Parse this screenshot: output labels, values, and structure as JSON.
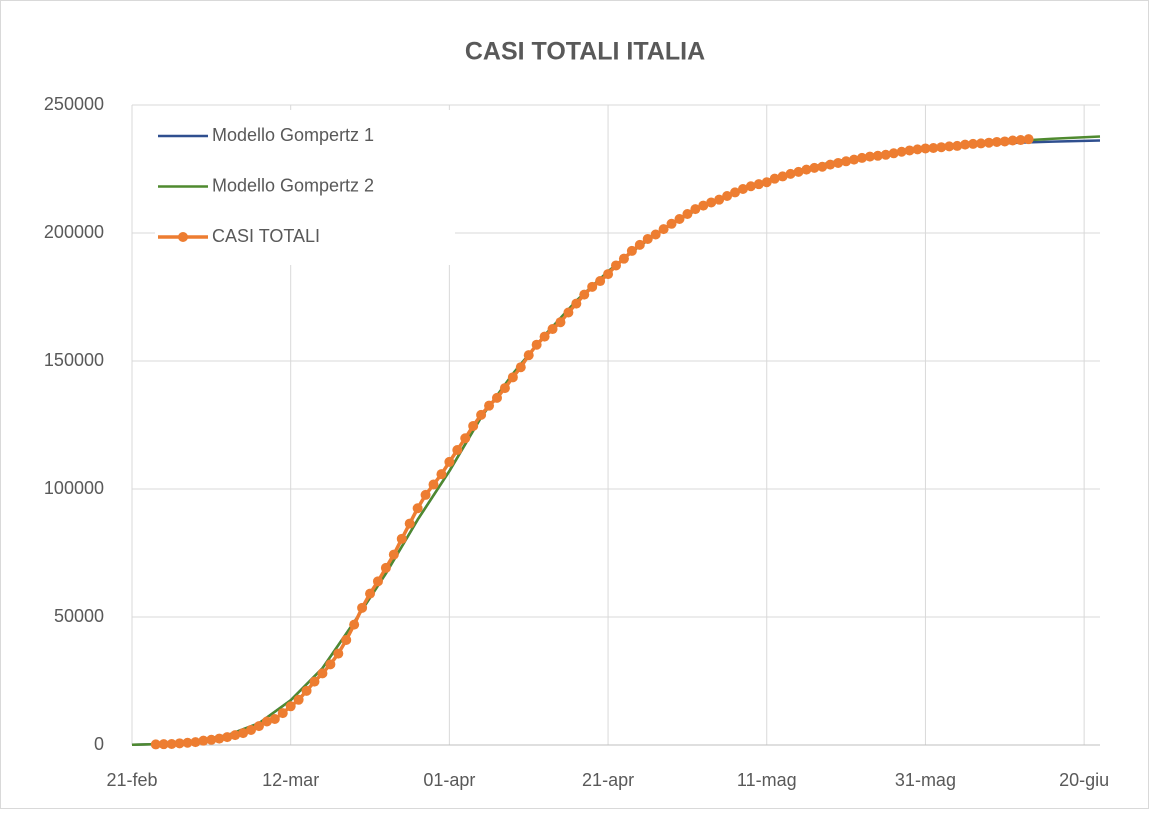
{
  "chart_data": {
    "type": "line",
    "title": "CASI TOTALI ITALIA",
    "xlim": [
      0,
      122
    ],
    "ylim": [
      0,
      250000
    ],
    "xticks": [
      {
        "value": 0,
        "label": "21-feb"
      },
      {
        "value": 20,
        "label": "12-mar"
      },
      {
        "value": 40,
        "label": "01-apr"
      },
      {
        "value": 60,
        "label": "21-apr"
      },
      {
        "value": 80,
        "label": "11-mag"
      },
      {
        "value": 100,
        "label": "31-mag"
      },
      {
        "value": 120,
        "label": "20-giu"
      }
    ],
    "yticks": [
      0,
      50000,
      100000,
      150000,
      200000,
      250000
    ],
    "grid": true,
    "legend": "upper left",
    "series": [
      {
        "name": "Modello Gompertz 1",
        "color": "#2f4f8f",
        "marker": false,
        "x": [
          0,
          4,
          8,
          12,
          16,
          20,
          24,
          28,
          32,
          36,
          40,
          44,
          48,
          52,
          56,
          60,
          64,
          68,
          72,
          76,
          80,
          84,
          88,
          92,
          96,
          100,
          104,
          108,
          112,
          116,
          120,
          122
        ],
        "values": [
          100,
          400,
          1500,
          3800,
          8500,
          17500,
          30000,
          48000,
          67000,
          88000,
          107000,
          128000,
          145000,
          160000,
          173500,
          185000,
          195000,
          203500,
          210500,
          216000,
          220500,
          224500,
          227500,
          229800,
          231500,
          232800,
          233900,
          234700,
          235300,
          235700,
          236000,
          236150
        ]
      },
      {
        "name": "Modello Gompertz 2",
        "color": "#4f8a2f",
        "marker": false,
        "x": [
          0,
          4,
          8,
          12,
          16,
          20,
          24,
          28,
          32,
          36,
          40,
          44,
          48,
          52,
          56,
          60,
          64,
          68,
          72,
          76,
          80,
          84,
          88,
          92,
          96,
          100,
          104,
          108,
          112,
          116,
          120,
          122
        ],
        "values": [
          100,
          400,
          1500,
          3800,
          8500,
          17500,
          30000,
          48000,
          67000,
          88000,
          107000,
          128000,
          145000,
          160000,
          173500,
          185000,
          195000,
          203500,
          210500,
          216000,
          220500,
          224500,
          227500,
          229800,
          231500,
          233000,
          234100,
          235200,
          236100,
          236800,
          237400,
          237700
        ]
      },
      {
        "name": "CASI TOTALI",
        "color": "#ed7d31",
        "marker": true,
        "x": [
          3,
          4,
          5,
          6,
          7,
          8,
          9,
          10,
          11,
          12,
          13,
          14,
          15,
          16,
          17,
          18,
          19,
          20,
          21,
          22,
          23,
          24,
          25,
          26,
          27,
          28,
          29,
          30,
          31,
          32,
          33,
          34,
          35,
          36,
          37,
          38,
          39,
          40,
          41,
          42,
          43,
          44,
          45,
          46,
          47,
          48,
          49,
          50,
          51,
          52,
          53,
          54,
          55,
          56,
          57,
          58,
          59,
          60,
          61,
          62,
          63,
          64,
          65,
          66,
          67,
          68,
          69,
          70,
          71,
          72,
          73,
          74,
          75,
          76,
          77,
          78,
          79,
          80,
          81,
          82,
          83,
          84,
          85,
          86,
          87,
          88,
          89,
          90,
          91,
          92,
          93,
          94,
          95,
          96,
          97,
          98,
          99,
          100,
          101,
          102,
          103,
          104,
          105,
          106,
          107,
          108,
          109,
          110,
          111,
          112,
          113
        ],
        "values": [
          229,
          322,
          400,
          650,
          888,
          1128,
          1694,
          2036,
          2502,
          3089,
          3858,
          4636,
          5883,
          7375,
          9172,
          10149,
          12462,
          15113,
          17660,
          21157,
          24747,
          27980,
          31506,
          35713,
          41035,
          47021,
          53578,
          59138,
          63927,
          69176,
          74386,
          80539,
          86498,
          92472,
          97689,
          101739,
          105792,
          110574,
          115242,
          119827,
          124632,
          128948,
          132547,
          135586,
          139422,
          143626,
          147577,
          152271,
          156363,
          159516,
          162488,
          165155,
          168941,
          172434,
          175925,
          178972,
          181228,
          183957,
          187327,
          189973,
          192994,
          195351,
          197675,
          199414,
          201505,
          203591,
          205463,
          207428,
          209328,
          210717,
          211938,
          213013,
          214457,
          215858,
          217185,
          218268,
          219070,
          219814,
          221216,
          222104,
          223096,
          223885,
          224760,
          225435,
          225886,
          226699,
          227364,
          228006,
          228658,
          229327,
          229858,
          230158,
          230555,
          231139,
          231732,
          232248,
          232664,
          233019,
          233197,
          233515,
          233836,
          234013,
          234531,
          234801,
          234998,
          235278,
          235561,
          235763,
          236142,
          236305,
          236651
        ]
      }
    ]
  }
}
